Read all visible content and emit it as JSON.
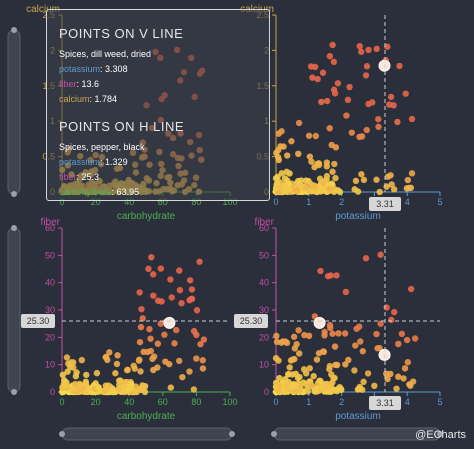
{
  "colors": {
    "potassium": "#5f9bd0",
    "fiber": "#c54fa3",
    "calcium": "#c8a64a",
    "carbohydrate": "#4caf50",
    "point_low": "#f5e04a",
    "point_high": "#e8664a",
    "background": "#2a2f3b"
  },
  "tooltip": {
    "v_title": "POINTS ON V LINE",
    "v_name": "Spices, dill weed, dried",
    "v_rows": [
      {
        "label": "potassium",
        "value": "3.308",
        "color": "#5f9bd0"
      },
      {
        "label": "fiber",
        "value": "13.6",
        "color": "#c54fa3"
      },
      {
        "label": "calcium",
        "value": "1.784",
        "color": "#c8a64a"
      }
    ],
    "h_title": "POINTS ON H LINE",
    "h_name": "Spices, pepper, black",
    "h_rows": [
      {
        "label": "potassium",
        "value": "1.329",
        "color": "#5f9bd0"
      },
      {
        "label": "fiber",
        "value": "25.3",
        "color": "#c54fa3"
      },
      {
        "label": "carbohydrate",
        "value": "63.95",
        "color": "#4caf50"
      }
    ]
  },
  "pointer": {
    "x_label": "3.31",
    "y_label": "25.30"
  },
  "watermark": "@ECharts",
  "chart_data": [
    {
      "type": "scatter",
      "title": "",
      "xlabel": "carbohydrate",
      "ylabel": "calcium",
      "xlim": [
        0,
        100
      ],
      "ylim": [
        0,
        2.5
      ],
      "xticks": [
        "0",
        "20",
        "40",
        "60",
        "80",
        "100"
      ],
      "yticks": [
        "0",
        "0.5",
        "1",
        "1.5",
        "2",
        "2.5"
      ]
    },
    {
      "type": "scatter",
      "title": "",
      "xlabel": "potassium",
      "ylabel": "calcium",
      "xlim": [
        0,
        5
      ],
      "ylim": [
        0,
        2.5
      ],
      "xticks": [
        "0",
        "1",
        "2",
        "3",
        "4",
        "5"
      ],
      "yticks": [
        "0",
        "0.5",
        "1",
        "1.5",
        "2",
        "2.5"
      ],
      "highlight_point": {
        "x": 3.308,
        "y": 1.784
      }
    },
    {
      "type": "scatter",
      "title": "",
      "xlabel": "carbohydrate",
      "ylabel": "fiber",
      "xlim": [
        0,
        100
      ],
      "ylim": [
        0,
        60
      ],
      "xticks": [
        "0",
        "20",
        "40",
        "60",
        "80",
        "100"
      ],
      "yticks": [
        "0",
        "10",
        "20",
        "30",
        "40",
        "50",
        "60"
      ],
      "highlight_point": {
        "x": 63.95,
        "y": 25.3
      }
    },
    {
      "type": "scatter",
      "title": "",
      "xlabel": "potassium",
      "ylabel": "fiber",
      "xlim": [
        0,
        5
      ],
      "ylim": [
        0,
        60
      ],
      "xticks": [
        "0",
        "1",
        "2",
        "3",
        "4",
        "5"
      ],
      "yticks": [
        "0",
        "10",
        "20",
        "30",
        "40",
        "50",
        "60"
      ],
      "highlight_points": [
        {
          "x": 1.329,
          "y": 25.3
        },
        {
          "x": 3.308,
          "y": 13.6
        }
      ]
    }
  ]
}
